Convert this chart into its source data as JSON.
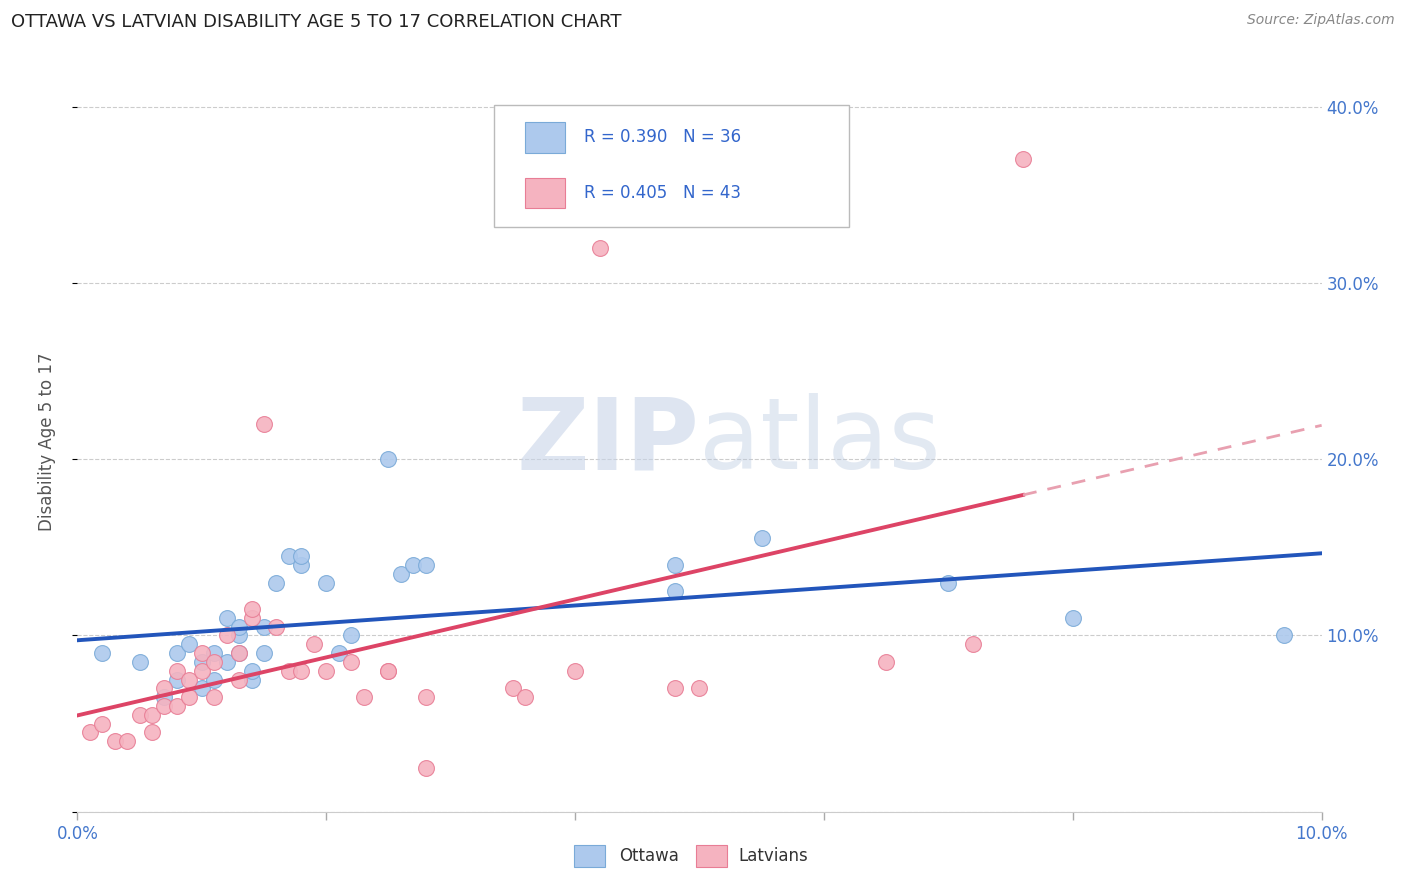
{
  "title": "OTTAWA VS LATVIAN DISABILITY AGE 5 TO 17 CORRELATION CHART",
  "source_text": "Source: ZipAtlas.com",
  "ylabel": "Disability Age 5 to 17",
  "xlim": [
    0.0,
    0.1
  ],
  "ylim": [
    0.0,
    0.42
  ],
  "xtick_positions": [
    0.0,
    0.02,
    0.04,
    0.06,
    0.08,
    0.1
  ],
  "xtick_labels": [
    "0.0%",
    "",
    "",
    "",
    "",
    "10.0%"
  ],
  "ytick_positions": [
    0.0,
    0.1,
    0.2,
    0.3,
    0.4
  ],
  "ytick_labels": [
    "",
    "10.0%",
    "20.0%",
    "30.0%",
    "40.0%"
  ],
  "legend_text_1": "R = 0.390   N = 36",
  "legend_text_2": "R = 0.405   N = 43",
  "legend_color": "#3366cc",
  "ottawa_fill_color": "#adc9ed",
  "latvian_fill_color": "#f5b3c0",
  "ottawa_edge_color": "#7aaad8",
  "latvian_edge_color": "#e87d95",
  "ottawa_line_color": "#2255bb",
  "latvian_line_color": "#dd4466",
  "latvian_dashed_color": "#e8a0b0",
  "background_color": "#ffffff",
  "grid_color": "#cccccc",
  "title_color": "#222222",
  "axis_tick_color": "#4477cc",
  "ylabel_color": "#555555",
  "watermark_zip_color": "#c8d4e8",
  "watermark_atlas_color": "#b8c8e0",
  "source_color": "#888888",
  "ottawa_x": [
    0.002,
    0.005,
    0.007,
    0.008,
    0.008,
    0.009,
    0.01,
    0.01,
    0.011,
    0.011,
    0.012,
    0.012,
    0.013,
    0.013,
    0.013,
    0.014,
    0.014,
    0.015,
    0.015,
    0.016,
    0.017,
    0.018,
    0.018,
    0.02,
    0.021,
    0.022,
    0.025,
    0.026,
    0.027,
    0.028,
    0.048,
    0.048,
    0.055,
    0.07,
    0.08,
    0.097
  ],
  "ottawa_y": [
    0.09,
    0.085,
    0.065,
    0.075,
    0.09,
    0.095,
    0.07,
    0.085,
    0.09,
    0.075,
    0.085,
    0.11,
    0.09,
    0.1,
    0.105,
    0.075,
    0.08,
    0.09,
    0.105,
    0.13,
    0.145,
    0.14,
    0.145,
    0.13,
    0.09,
    0.1,
    0.2,
    0.135,
    0.14,
    0.14,
    0.14,
    0.125,
    0.155,
    0.13,
    0.11,
    0.1
  ],
  "latvian_x": [
    0.001,
    0.002,
    0.003,
    0.004,
    0.005,
    0.006,
    0.006,
    0.007,
    0.007,
    0.008,
    0.008,
    0.009,
    0.009,
    0.01,
    0.01,
    0.011,
    0.011,
    0.012,
    0.013,
    0.013,
    0.014,
    0.014,
    0.015,
    0.016,
    0.017,
    0.018,
    0.019,
    0.02,
    0.022,
    0.023,
    0.025,
    0.025,
    0.028,
    0.028,
    0.035,
    0.036,
    0.04,
    0.042,
    0.048,
    0.05,
    0.065,
    0.072,
    0.076
  ],
  "latvian_y": [
    0.045,
    0.05,
    0.04,
    0.04,
    0.055,
    0.045,
    0.055,
    0.06,
    0.07,
    0.08,
    0.06,
    0.075,
    0.065,
    0.08,
    0.09,
    0.065,
    0.085,
    0.1,
    0.075,
    0.09,
    0.11,
    0.115,
    0.22,
    0.105,
    0.08,
    0.08,
    0.095,
    0.08,
    0.085,
    0.065,
    0.08,
    0.08,
    0.025,
    0.065,
    0.07,
    0.065,
    0.08,
    0.32,
    0.07,
    0.07,
    0.085,
    0.095,
    0.37
  ]
}
